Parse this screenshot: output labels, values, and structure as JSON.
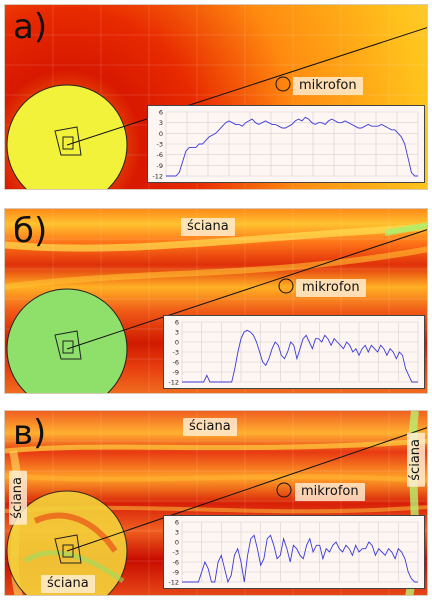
{
  "panels": [
    {
      "letter": "a)",
      "mic_label": "mikrofon",
      "wall_labels": [],
      "axis_ticks": [
        "6",
        "3",
        "0",
        "-3",
        "-6",
        "-9",
        "-12"
      ],
      "field": {
        "base": "#ff7a12",
        "dark": "#cf1a00",
        "pale": "#ffd23a",
        "speaker_zone": "#f2f23a"
      },
      "plot_series": [
        -12,
        -12,
        -12,
        -12,
        -11,
        -8,
        -5,
        -4,
        -4,
        -4,
        -3,
        -3,
        -2,
        -1,
        -0.5,
        0,
        1,
        2,
        3,
        3.5,
        3,
        2.5,
        2.5,
        2,
        3,
        3.5,
        4,
        3,
        2.5,
        3,
        3.5,
        3,
        2.5,
        2.5,
        2,
        1.5,
        1.5,
        2,
        2.5,
        3.5,
        4,
        3.5,
        4.5,
        4,
        3,
        2.5,
        3,
        3,
        2.5,
        3.5,
        4,
        3.5,
        3,
        3,
        3.5,
        3,
        2.5,
        2,
        1.5,
        1.5,
        2,
        2.5,
        2,
        2,
        2,
        2.5,
        2,
        1.5,
        1,
        1,
        0,
        -1,
        -3,
        -7,
        -11,
        -12,
        -12
      ]
    },
    {
      "letter": "б)",
      "mic_label": "mikrofon",
      "wall_labels": [
        "ściana"
      ],
      "axis_ticks": [
        "6",
        "3",
        "0",
        "-3",
        "-6",
        "-9",
        "-12"
      ],
      "field": {
        "base": "#f05a18",
        "dark": "#c81000",
        "pale": "#ffd84a",
        "speaker_zone": "#8ee06a"
      },
      "plot_series": [
        -12,
        -12,
        -12,
        -12,
        -12,
        -12,
        -12,
        -12,
        -10,
        -12,
        -12,
        -12,
        -12,
        -12,
        -12,
        -12,
        -12,
        -8,
        -3,
        1,
        3,
        3.5,
        3,
        2,
        0,
        -3,
        -6,
        -7,
        -5,
        -2,
        0,
        -1,
        -4,
        -5,
        -3,
        0,
        -1,
        -5,
        -2,
        1,
        2,
        0,
        -2,
        1,
        1,
        0,
        2,
        1,
        -1,
        1,
        0,
        -1,
        -2,
        0,
        -1,
        -3,
        -2,
        -4,
        -2,
        -1,
        -3,
        -1,
        -2,
        -3,
        -1,
        -2,
        -4,
        -2,
        -3,
        -5,
        -3,
        -4,
        -8,
        -10,
        -12,
        -12,
        -12
      ]
    },
    {
      "letter": "в)",
      "mic_label": "mikrofon",
      "wall_labels": [
        "ściana",
        "ściana",
        "ściana"
      ],
      "axis_ticks": [
        "6",
        "3",
        "0",
        "-3",
        "-6",
        "-9",
        "-12"
      ],
      "field": {
        "base": "#e8401a",
        "dark": "#b80800",
        "pale": "#ffe24a",
        "speaker_zone": "#f5d23a"
      },
      "plot_series": [
        -12,
        -12,
        -12,
        -12,
        -12,
        -12,
        -9,
        -6,
        -8,
        -12,
        -12,
        -6,
        -4,
        -8,
        -12,
        -10,
        -4,
        -2,
        -6,
        -12,
        -4,
        1,
        2,
        -2,
        -7,
        -5,
        1,
        2,
        -1,
        -5,
        -4,
        1,
        -2,
        -6,
        -1,
        -2,
        -4,
        -5,
        -1,
        1,
        -3,
        -1,
        -1,
        -5,
        -2,
        -3,
        -1,
        0,
        -2,
        -3,
        -1,
        -2,
        -4,
        -1,
        -3,
        -2,
        -2,
        0,
        -1,
        -4,
        -2,
        -3,
        -4,
        -2,
        -3,
        -5,
        -2,
        -3,
        -5,
        -9,
        -11,
        -12,
        -12
      ]
    }
  ]
}
